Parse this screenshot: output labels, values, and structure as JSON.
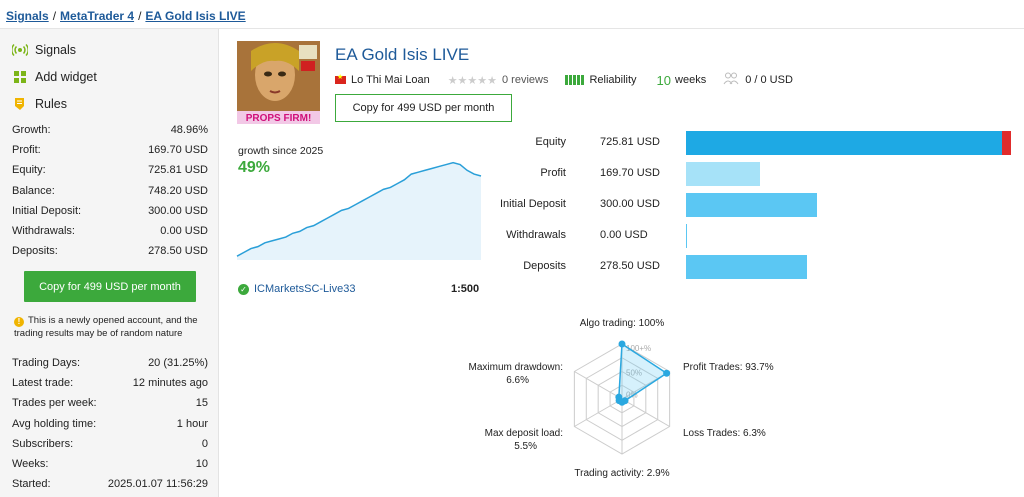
{
  "breadcrumb": {
    "items": [
      "Signals",
      "MetaTrader 4",
      "EA Gold Isis LIVE"
    ],
    "sep": "/"
  },
  "sidebar": {
    "links": [
      {
        "label": "Signals",
        "icon": "signal-icon"
      },
      {
        "label": "Add widget",
        "icon": "widget-icon"
      },
      {
        "label": "Rules",
        "icon": "rules-icon"
      }
    ],
    "stats": [
      {
        "label": "Growth:",
        "value": "48.96%"
      },
      {
        "label": "Profit:",
        "value": "169.70 USD"
      },
      {
        "label": "Equity:",
        "value": "725.81 USD"
      },
      {
        "label": "Balance:",
        "value": "748.20 USD"
      },
      {
        "label": "Initial Deposit:",
        "value": "300.00 USD"
      },
      {
        "label": "Withdrawals:",
        "value": "0.00 USD"
      },
      {
        "label": "Deposits:",
        "value": "278.50 USD"
      }
    ],
    "copy_button": "Copy for 499 USD per month",
    "notice": "This is a newly opened account, and the trading results may be of random nature",
    "stats2": [
      {
        "label": "Trading Days:",
        "value": "20 (31.25%)"
      },
      {
        "label": "Latest trade:",
        "value": "12 minutes ago"
      },
      {
        "label": "Trades per week:",
        "value": "15"
      },
      {
        "label": "Avg holding time:",
        "value": "1 hour"
      },
      {
        "label": "Subscribers:",
        "value": "0"
      },
      {
        "label": "Weeks:",
        "value": "10"
      },
      {
        "label": "Started:",
        "value": "2025.01.07 11:56:29"
      }
    ]
  },
  "signal": {
    "title": "EA Gold Isis LIVE",
    "author": "Lo Thi Mai Loan",
    "reviews": "0 reviews",
    "reliability": "Reliability",
    "weeks_num": "10",
    "weeks_label": "weeks",
    "subscribers": "0 / 0 USD",
    "copy_button": "Copy for 499 USD per month",
    "avatar_text": "PROPS FIRM!"
  },
  "growth": {
    "label": "growth since 2025",
    "value": "49%"
  },
  "broker": {
    "name": "ICMarketsSC-Live33",
    "leverage": "1:500"
  },
  "colors": {
    "accent_green": "#3ca93c",
    "link_blue": "#1e5a99",
    "bar_blue": "#5bc7f3",
    "bar_light": "#a6e2f8",
    "bar_dark": "#1ea9e4",
    "bar_red": "#e02c2c"
  },
  "chart_data": [
    {
      "type": "line",
      "subtitle": "growth since 2025",
      "x": [
        0,
        1,
        2,
        3,
        4,
        5,
        6,
        7,
        8,
        9,
        10,
        11,
        12,
        13,
        14,
        15,
        16,
        17,
        18,
        19,
        20,
        21,
        22,
        23,
        24,
        25,
        26,
        27,
        28,
        29,
        30,
        31,
        32,
        33,
        34,
        35
      ],
      "values": [
        2,
        4,
        6,
        7,
        9,
        10,
        11,
        12,
        14,
        15,
        17,
        18,
        20,
        22,
        24,
        26,
        27,
        29,
        31,
        33,
        35,
        37,
        38,
        40,
        42,
        45,
        46,
        47,
        48,
        49,
        50,
        51,
        50,
        47,
        45,
        44
      ],
      "ylim": [
        0,
        55
      ],
      "grid": false
    },
    {
      "type": "bar",
      "orientation": "horizontal",
      "categories": [
        "Equity",
        "Profit",
        "Initial Deposit",
        "Withdrawals",
        "Deposits"
      ],
      "values": [
        725.81,
        169.7,
        300.0,
        0.0,
        278.5
      ],
      "value_labels": [
        "725.81 USD",
        "169.70 USD",
        "300.00 USD",
        "0.00 USD",
        "278.50 USD"
      ],
      "xlim": [
        0,
        748.2
      ]
    },
    {
      "type": "radar",
      "axes": [
        {
          "label": "Algo trading: 100%",
          "value": 100
        },
        {
          "label": "Profit Trades: 93.7%",
          "value": 93.7
        },
        {
          "label": "Loss Trades: 6.3%",
          "value": 6.3
        },
        {
          "label": "Trading activity: 2.9%",
          "value": 2.9
        },
        {
          "label": "Max deposit load: 5.5%",
          "value": 5.5
        },
        {
          "label": "Maximum drawdown: 6.6%",
          "value": 6.6
        }
      ],
      "ring_labels": [
        "100+%",
        "50%",
        "0%"
      ]
    }
  ]
}
